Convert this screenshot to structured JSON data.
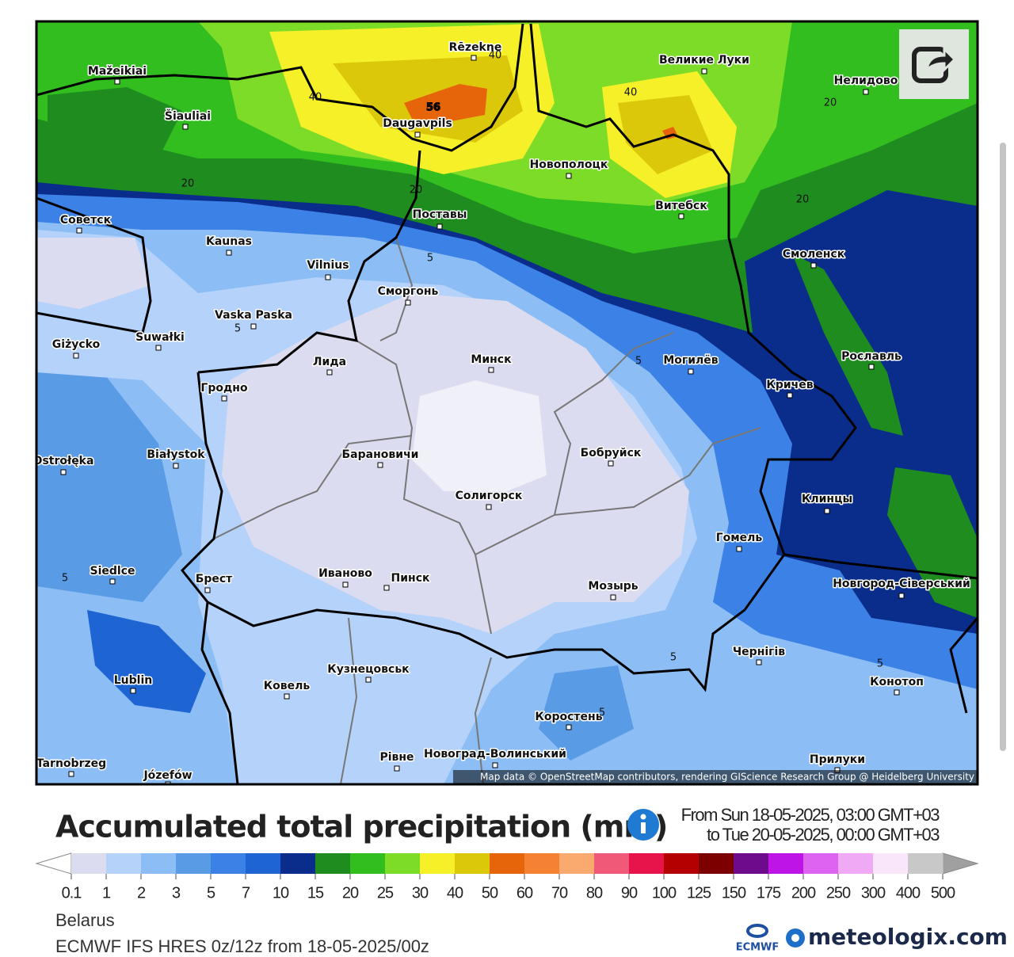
{
  "map": {
    "cities": [
      "Rēzekne",
      "Mažeikiai",
      "Šiauliai",
      "Daugavpils",
      "Великие Луки",
      "Нелидово",
      "Новополоцк",
      "Витебск",
      "Советск",
      "Поставы",
      "Kaunas",
      "Vilnius",
      "Смоленск",
      "Сморгонь",
      "Vaska Paska",
      "Giżycko",
      "Suwałki",
      "Лида",
      "Минск",
      "Могилёв",
      "Рославль",
      "Гродно",
      "Кричев",
      "Białystok",
      "Ostrołęka",
      "Барановичи",
      "Бобруйск",
      "Солигорск",
      "Клинцы",
      "Гомель",
      "Siedlce",
      "Брест",
      "Иваново",
      "Пинск",
      "Мозырь",
      "Новгород-Сіверський",
      "Чернігів",
      "Lublin",
      "Ковель",
      "Кузнецовськ",
      "Конотоп",
      "Коростень",
      "Рівне",
      "Новоград-Волинський",
      "Прилуки",
      "Tarnobrzeg",
      "Józefów"
    ],
    "contour_labels": [
      56,
      40,
      40,
      40,
      20,
      20,
      20,
      20,
      5,
      5,
      5,
      5,
      5,
      5,
      5
    ],
    "attribution": "Map data © OpenStreetMap contributors, rendering GIScience Research Group @ Heidelberg University"
  },
  "legend": {
    "title": "Accumulated total precipitation (mm)",
    "period_from": "From Sun 18-05-2025, 03:00 GMT+03",
    "period_to": "to Tue 20-05-2025, 00:00 GMT+03",
    "ticks": [
      0.1,
      1,
      2,
      3,
      5,
      7,
      10,
      15,
      20,
      25,
      30,
      40,
      50,
      60,
      70,
      80,
      90,
      100,
      125,
      150,
      175,
      200,
      250,
      300,
      400,
      500
    ],
    "colors": [
      "#dcdcf0",
      "#b4d2fa",
      "#8cbef5",
      "#5a9be6",
      "#3c82e6",
      "#1e64d2",
      "#0a2d8c",
      "#1e8c1e",
      "#32be1e",
      "#7ddc28",
      "#f5f028",
      "#dcc80a",
      "#e6640a",
      "#f58232",
      "#faaa6e",
      "#f05a78",
      "#e6144b",
      "#b40000",
      "#7d0000",
      "#6e0a8c",
      "#be14e6",
      "#dc64f0",
      "#f0aaf5",
      "#fae6fa",
      "#c8c8c8"
    ],
    "under_color": "#ffffff",
    "over_color": "#a0a0a0"
  },
  "footer": {
    "region": "Belarus",
    "model": "ECMWF IFS HRES 0z/12z from 18-05-2025/00z",
    "ecmwf": "ECMWF",
    "brand": "meteologix.com"
  }
}
